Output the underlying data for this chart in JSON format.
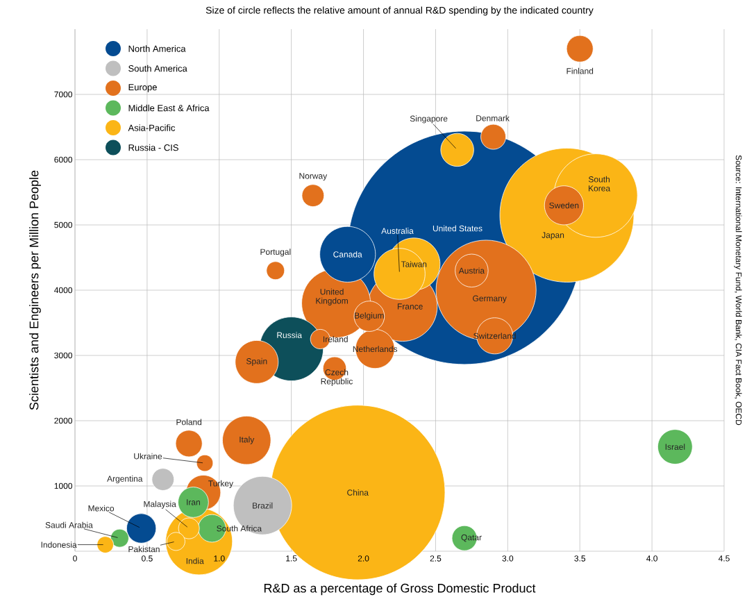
{
  "chart_data": {
    "type": "bubble",
    "title": "Size of circle reflects the relative amount of annual R&D spending by the indicated country",
    "xlabel": "R&D as a percentage of Gross Domestic Product",
    "ylabel": "Scientists and Engineers per Million People",
    "xlim": [
      0,
      4.5
    ],
    "ylim": [
      0,
      8000
    ],
    "xticks": [
      0,
      0.5,
      {
        "value": 1,
        "label": "1.0"
      },
      1.5,
      {
        "value": 2,
        "label": "2.0"
      },
      2.5,
      {
        "value": 3,
        "label": "3.0"
      },
      3.5,
      {
        "value": 4,
        "label": "4.0"
      },
      4.5
    ],
    "yticks": [
      1000,
      2000,
      3000,
      4000,
      5000,
      6000,
      7000
    ],
    "grid": true,
    "legend": "top left",
    "marker": "circle",
    "series": [
      {
        "name": "North America",
        "color": "#044b91",
        "x": [
          2.7,
          1.89,
          0.46
        ],
        "values": [
          4650,
          4550,
          350
        ],
        "sizes": [
          1,
          0.057,
          0.016
        ]
      },
      {
        "name": "South America",
        "color": "#bfbfbf",
        "x": [
          0.61,
          1.3
        ],
        "values": [
          1100,
          700
        ],
        "sizes": [
          0.009,
          0.0625
        ]
      },
      {
        "name": "Europe",
        "color": "#e2711d",
        "x": [
          3.5,
          2.9,
          1.65,
          1.39,
          3.39,
          2.75,
          2.85,
          2.91,
          2.27,
          1.81,
          2.04,
          2.08,
          1.7,
          1.26,
          1.8,
          0.79,
          1.19,
          0.9,
          0.89
        ],
        "values": [
          7700,
          6350,
          5450,
          4300,
          5300,
          4300,
          4000,
          3300,
          3750,
          3800,
          3600,
          3100,
          3250,
          2900,
          2800,
          1650,
          1700,
          1350,
          900
        ],
        "sizes": [
          0.013,
          0.0115,
          0.009,
          0.006,
          0.028,
          0.02,
          0.184,
          0.024,
          0.089,
          0.087,
          0.017,
          0.028,
          0.007,
          0.034,
          0.01,
          0.013,
          0.043,
          0.005,
          0.022
        ]
      },
      {
        "name": "Middle East & Africa",
        "color": "#5cb85c",
        "x": [
          4.16,
          2.7,
          0.82,
          0.95,
          0.31
        ],
        "values": [
          1600,
          200,
          750,
          350,
          200
        ],
        "sizes": [
          0.022,
          0.0115,
          0.017,
          0.014,
          0.006
        ]
      },
      {
        "name": "Asia-Pacific",
        "color": "#fbb516",
        "x": [
          1.96,
          3.41,
          3.61,
          2.65,
          2.25,
          2.35,
          0.86,
          0.79,
          0.7,
          0.21
        ],
        "values": [
          900,
          5150,
          5450,
          6150,
          4250,
          4400,
          150,
          350,
          150,
          100
        ],
        "sizes": [
          0.56,
          0.33,
          0.128,
          0.02,
          0.048,
          0.05,
          0.082,
          0.008,
          0.006,
          0.005
        ]
      },
      {
        "name": "Russia - CIS",
        "color": "#0d4f5a",
        "x": [
          1.5
        ],
        "values": [
          3100
        ],
        "sizes": [
          0.075
        ]
      }
    ],
    "annotations": [
      "Source: International Monetary Fund, World Bank, CIA Fact Book, OECD",
      {
        "text": "United States",
        "x": 2.7,
        "y": 4650
      },
      {
        "text": "Canada",
        "x": 1.89,
        "y": 4550
      },
      {
        "text": "Mexico",
        "x": 0.46,
        "y": 350
      },
      {
        "text": "Argentina",
        "x": 0.61,
        "y": 1100
      },
      {
        "text": "Brazil",
        "x": 1.3,
        "y": 700
      },
      {
        "text": "Finland",
        "x": 3.5,
        "y": 7700
      },
      {
        "text": "Denmark",
        "x": 2.9,
        "y": 6350
      },
      {
        "text": "Norway",
        "x": 1.65,
        "y": 5450
      },
      {
        "text": "Portugal",
        "x": 1.39,
        "y": 4300
      },
      {
        "text": "Sweden",
        "x": 3.39,
        "y": 5300
      },
      {
        "text": "Austria",
        "x": 2.75,
        "y": 4300
      },
      {
        "text": "Germany",
        "x": 2.85,
        "y": 4000
      },
      {
        "text": "Switzerland",
        "x": 2.91,
        "y": 3300
      },
      {
        "text": "France",
        "x": 2.27,
        "y": 3750
      },
      {
        "text": "United Kingdom",
        "x": 1.81,
        "y": 3800
      },
      {
        "text": "Belgium",
        "x": 2.04,
        "y": 3600
      },
      {
        "text": "Netherlands",
        "x": 2.08,
        "y": 3100
      },
      {
        "text": "Ireland",
        "x": 1.7,
        "y": 3250
      },
      {
        "text": "Spain",
        "x": 1.26,
        "y": 2900
      },
      {
        "text": "Czech Republic",
        "x": 1.8,
        "y": 2800
      },
      {
        "text": "Poland",
        "x": 0.79,
        "y": 1650
      },
      {
        "text": "Italy",
        "x": 1.19,
        "y": 1700
      },
      {
        "text": "Ukraine",
        "x": 0.9,
        "y": 1350
      },
      {
        "text": "Turkey",
        "x": 0.89,
        "y": 900
      },
      {
        "text": "Israel",
        "x": 4.16,
        "y": 1600
      },
      {
        "text": "Qatar",
        "x": 2.7,
        "y": 200
      },
      {
        "text": "Iran",
        "x": 0.82,
        "y": 750
      },
      {
        "text": "South Africa",
        "x": 0.95,
        "y": 350
      },
      {
        "text": "Saudi Arabia",
        "x": 0.31,
        "y": 200
      },
      {
        "text": "China",
        "x": 1.96,
        "y": 900
      },
      {
        "text": "Japan",
        "x": 3.41,
        "y": 5150
      },
      {
        "text": "South Korea",
        "x": 3.61,
        "y": 5450
      },
      {
        "text": "Singapore",
        "x": 2.65,
        "y": 6150
      },
      {
        "text": "Australia",
        "x": 2.25,
        "y": 4250
      },
      {
        "text": "Taiwan",
        "x": 2.35,
        "y": 4400
      },
      {
        "text": "India",
        "x": 0.86,
        "y": 150
      },
      {
        "text": "Malaysia",
        "x": 0.79,
        "y": 350
      },
      {
        "text": "Pakistan",
        "x": 0.7,
        "y": 150
      },
      {
        "text": "Indonesia",
        "x": 0.21,
        "y": 100
      },
      {
        "text": "Russia",
        "x": 1.5,
        "y": 3100
      }
    ]
  }
}
